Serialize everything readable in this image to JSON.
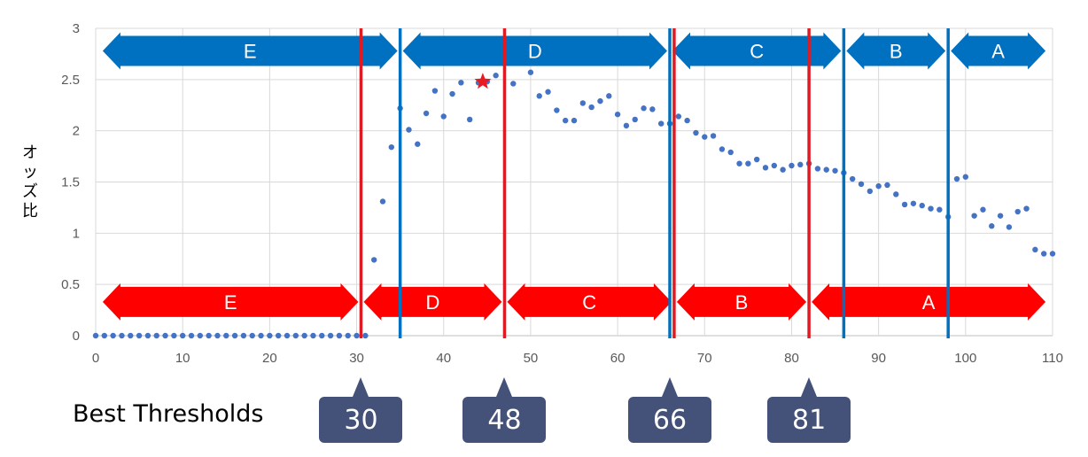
{
  "chart_data": {
    "type": "scatter",
    "title": "",
    "xlabel": "",
    "ylabel": "オッズ比",
    "xlim": [
      0,
      110
    ],
    "ylim": [
      0,
      3
    ],
    "x_ticks": [
      0,
      10,
      20,
      30,
      40,
      50,
      60,
      70,
      80,
      90,
      100,
      110
    ],
    "y_ticks": [
      0,
      0.5,
      1,
      1.5,
      2,
      2.5,
      3
    ],
    "grid": true,
    "point_color": "#4472c4",
    "points": [
      [
        0,
        0
      ],
      [
        1,
        0
      ],
      [
        2,
        0
      ],
      [
        3,
        0
      ],
      [
        4,
        0
      ],
      [
        5,
        0
      ],
      [
        6,
        0
      ],
      [
        7,
        0
      ],
      [
        8,
        0
      ],
      [
        9,
        0
      ],
      [
        10,
        0
      ],
      [
        11,
        0
      ],
      [
        12,
        0
      ],
      [
        13,
        0
      ],
      [
        14,
        0
      ],
      [
        15,
        0
      ],
      [
        16,
        0
      ],
      [
        17,
        0
      ],
      [
        18,
        0
      ],
      [
        19,
        0
      ],
      [
        20,
        0
      ],
      [
        21,
        0
      ],
      [
        22,
        0
      ],
      [
        23,
        0
      ],
      [
        24,
        0
      ],
      [
        25,
        0
      ],
      [
        26,
        0
      ],
      [
        27,
        0
      ],
      [
        28,
        0
      ],
      [
        29,
        0
      ],
      [
        30,
        0
      ],
      [
        31,
        0
      ],
      [
        32,
        0.74
      ],
      [
        33,
        1.31
      ],
      [
        34,
        1.84
      ],
      [
        35,
        2.22
      ],
      [
        36,
        2.01
      ],
      [
        37,
        1.87
      ],
      [
        38,
        2.17
      ],
      [
        39,
        2.39
      ],
      [
        40,
        2.14
      ],
      [
        41,
        2.36
      ],
      [
        42,
        2.47
      ],
      [
        43,
        2.11
      ],
      [
        44,
        2.47
      ],
      [
        45,
        2.48
      ],
      [
        46,
        2.54
      ],
      [
        48,
        2.46
      ],
      [
        50,
        2.57
      ],
      [
        51,
        2.34
      ],
      [
        52,
        2.38
      ],
      [
        53,
        2.2
      ],
      [
        54,
        2.1
      ],
      [
        55,
        2.1
      ],
      [
        56,
        2.27
      ],
      [
        57,
        2.23
      ],
      [
        58,
        2.29
      ],
      [
        59,
        2.34
      ],
      [
        60,
        2.16
      ],
      [
        61,
        2.05
      ],
      [
        62,
        2.11
      ],
      [
        63,
        2.22
      ],
      [
        64,
        2.21
      ],
      [
        65,
        2.07
      ],
      [
        66,
        2.07
      ],
      [
        67,
        2.14
      ],
      [
        68,
        2.1
      ],
      [
        69,
        1.98
      ],
      [
        70,
        1.94
      ],
      [
        71,
        1.95
      ],
      [
        72,
        1.82
      ],
      [
        73,
        1.79
      ],
      [
        74,
        1.68
      ],
      [
        75,
        1.68
      ],
      [
        76,
        1.72
      ],
      [
        77,
        1.64
      ],
      [
        78,
        1.66
      ],
      [
        79,
        1.62
      ],
      [
        80,
        1.66
      ],
      [
        81,
        1.67
      ],
      [
        82,
        1.68
      ],
      [
        83,
        1.63
      ],
      [
        84,
        1.62
      ],
      [
        85,
        1.61
      ],
      [
        86,
        1.59
      ],
      [
        87,
        1.53
      ],
      [
        88,
        1.48
      ],
      [
        89,
        1.41
      ],
      [
        90,
        1.46
      ],
      [
        91,
        1.47
      ],
      [
        92,
        1.38
      ],
      [
        93,
        1.28
      ],
      [
        94,
        1.29
      ],
      [
        95,
        1.27
      ],
      [
        96,
        1.24
      ],
      [
        97,
        1.23
      ],
      [
        98,
        1.16
      ],
      [
        99,
        1.53
      ],
      [
        100,
        1.55
      ],
      [
        101,
        1.17
      ],
      [
        102,
        1.23
      ],
      [
        103,
        1.07
      ],
      [
        104,
        1.17
      ],
      [
        105,
        1.06
      ],
      [
        106,
        1.21
      ],
      [
        107,
        1.24
      ],
      [
        108,
        0.84
      ],
      [
        109,
        0.8
      ],
      [
        110,
        0.8
      ]
    ],
    "highlight": {
      "x": 44.5,
      "y": 2.48,
      "marker": "star",
      "color": "#e81b23"
    },
    "blue_bands": {
      "color": "#0070c0",
      "y": 2.78,
      "boundaries": [
        35,
        66,
        86,
        98
      ],
      "segments": [
        {
          "label": "E",
          "from": 0.5,
          "to": 35
        },
        {
          "label": "D",
          "from": 35,
          "to": 66
        },
        {
          "label": "C",
          "from": 66,
          "to": 86
        },
        {
          "label": "B",
          "from": 86,
          "to": 98
        },
        {
          "label": "A",
          "from": 98,
          "to": 109.5
        }
      ]
    },
    "red_bands": {
      "color": "#ff0000",
      "y": 0.33,
      "boundaries": [
        30.5,
        47,
        66.5,
        82
      ],
      "segments": [
        {
          "label": "E",
          "from": 0.5,
          "to": 30.5
        },
        {
          "label": "D",
          "from": 30.5,
          "to": 47
        },
        {
          "label": "C",
          "from": 47,
          "to": 66.5
        },
        {
          "label": "B",
          "from": 66.5,
          "to": 82
        },
        {
          "label": "A",
          "from": 82,
          "to": 109.5
        }
      ]
    },
    "boundary_line_colors": {
      "blue": "#0070c0",
      "red": "#e01a22"
    }
  },
  "best_thresholds": {
    "label": "Best Thresholds",
    "color": "#44527a",
    "values": [
      {
        "value": "30",
        "x": 30.5
      },
      {
        "value": "48",
        "x": 47
      },
      {
        "value": "66",
        "x": 66
      },
      {
        "value": "81",
        "x": 82
      }
    ]
  }
}
